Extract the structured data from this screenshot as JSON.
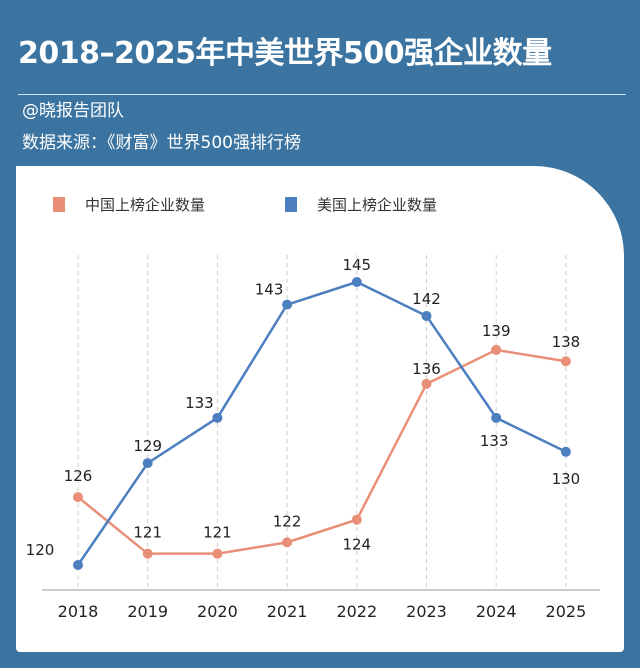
{
  "header": {
    "title": "2018–2025年中美世界500强企业数量",
    "author": "@晓报告团队",
    "source": "数据来源：《财富》世界500强排行榜"
  },
  "chart_data": {
    "type": "line",
    "title": "2018–2025年中美世界500强企业数量",
    "categories": [
      "2018",
      "2019",
      "2020",
      "2021",
      "2022",
      "2023",
      "2024",
      "2025"
    ],
    "series": [
      {
        "name": "中国上榜企业数量",
        "color": "#e98f78",
        "values": [
          126,
          121,
          121,
          122,
          124,
          136,
          139,
          138
        ]
      },
      {
        "name": "美国上榜企业数量",
        "color": "#4c7fbf",
        "values": [
          120,
          129,
          133,
          143,
          145,
          142,
          133,
          130
        ]
      }
    ],
    "grid": "vertical dashed",
    "legend": "top-left",
    "xlabel": "",
    "ylabel": ""
  }
}
